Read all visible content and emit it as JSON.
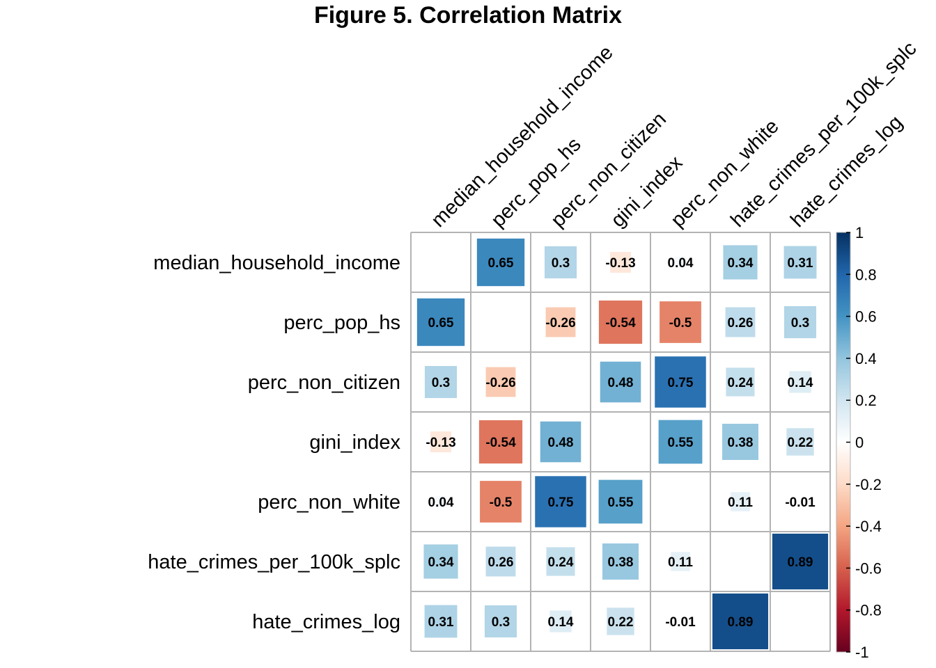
{
  "chart_data": {
    "type": "heatmap",
    "title": "Figure 5. Correlation Matrix",
    "variables": [
      "median_household_income",
      "perc_pop_hs",
      "perc_non_citizen",
      "gini_index",
      "perc_non_white",
      "hate_crimes_per_100k_splc",
      "hate_crimes_log"
    ],
    "matrix": [
      [
        null,
        0.65,
        0.3,
        -0.13,
        0.04,
        0.34,
        0.31
      ],
      [
        0.65,
        null,
        -0.26,
        -0.54,
        -0.5,
        0.26,
        0.3
      ],
      [
        0.3,
        -0.26,
        null,
        0.48,
        0.75,
        0.24,
        0.14
      ],
      [
        -0.13,
        -0.54,
        0.48,
        null,
        0.55,
        0.38,
        0.22
      ],
      [
        0.04,
        -0.5,
        0.75,
        0.55,
        null,
        0.11,
        -0.01
      ],
      [
        0.34,
        0.26,
        0.24,
        0.38,
        0.11,
        null,
        0.89
      ],
      [
        0.31,
        0.3,
        0.14,
        0.22,
        -0.01,
        0.89,
        null
      ]
    ],
    "colorbar": {
      "range": [
        -1,
        1
      ],
      "ticks": [
        "1",
        "0.8",
        "0.6",
        "0.4",
        "0.2",
        "0",
        "-0.2",
        "-0.4",
        "-0.6",
        "-0.8",
        "-1"
      ],
      "tick_values": [
        1,
        0.8,
        0.6,
        0.4,
        0.2,
        0,
        -0.2,
        -0.4,
        -0.6,
        -0.8,
        -1
      ]
    },
    "palette": [
      "#67001F",
      "#B2182B",
      "#D6604D",
      "#F4A582",
      "#FDDBC7",
      "#FFFFFF",
      "#D1E5F0",
      "#92C5DE",
      "#4393C3",
      "#2166AC",
      "#053061"
    ],
    "grid_color": "#b3b3b3",
    "diagonal": "blank",
    "cell_size_by": "abs(correlation)"
  }
}
